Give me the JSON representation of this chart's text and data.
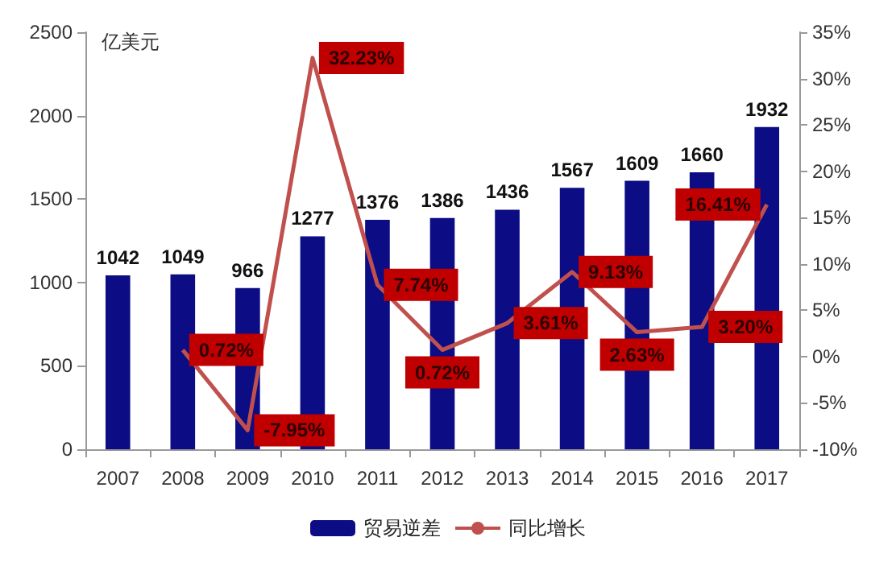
{
  "chart_data": {
    "type": "bar",
    "ylabel": "亿美元",
    "categories": [
      "2007",
      "2008",
      "2009",
      "2010",
      "2011",
      "2012",
      "2013",
      "2014",
      "2015",
      "2016",
      "2017"
    ],
    "series": [
      {
        "name": "贸易逆差",
        "color": "#0c0c84",
        "values": [
          1042,
          1049,
          966,
          1277,
          1376,
          1386,
          1436,
          1567,
          1609,
          1660,
          1932
        ]
      },
      {
        "name": "同比增长",
        "type": "line",
        "axis": "y2",
        "color": "#c0504d",
        "values": [
          null,
          0.72,
          -7.95,
          32.23,
          7.74,
          0.72,
          3.61,
          9.13,
          2.63,
          3.2,
          16.41
        ],
        "value_labels": [
          null,
          "0.72%",
          "-7.95%",
          "32.23%",
          "7.74%",
          "0.72%",
          "3.61%",
          "9.13%",
          "2.63%",
          "3.20%",
          "16.41%"
        ]
      }
    ],
    "data_labels": true,
    "ylim": [
      0,
      2500
    ],
    "yticks": [
      0,
      500,
      1000,
      1500,
      2000,
      2500
    ],
    "y2lim": [
      -10,
      35
    ],
    "y2ticks": [
      {
        "value": -10,
        "label": "-10%"
      },
      {
        "value": -5,
        "label": "-5%"
      },
      {
        "value": 0,
        "label": "0%"
      },
      {
        "value": 5,
        "label": "5%"
      },
      {
        "value": 10,
        "label": "10%"
      },
      {
        "value": 15,
        "label": "15%"
      },
      {
        "value": 20,
        "label": "20%"
      },
      {
        "value": 25,
        "label": "25%"
      },
      {
        "value": 30,
        "label": "30%"
      },
      {
        "value": 35,
        "label": "35%"
      }
    ],
    "grid": false,
    "legend": "bottom",
    "marker": "none"
  }
}
